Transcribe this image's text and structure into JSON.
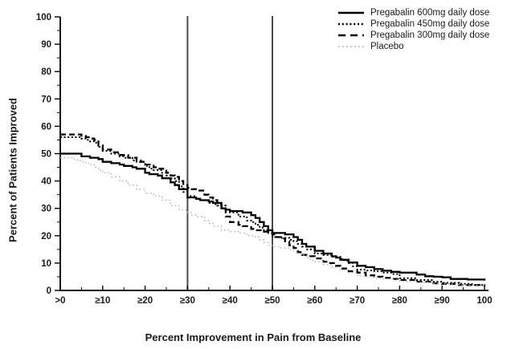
{
  "figure": {
    "x_axis_title": "Percent Improvement in Pain from Baseline",
    "y_axis_title": "Percent of Patients Improved"
  },
  "chart_data": {
    "type": "line",
    "subtype": "step",
    "title": "",
    "xlabel": "Percent Improvement in Pain from Baseline",
    "ylabel": "Percent of Patients Improved",
    "xlim": [
      0,
      100
    ],
    "ylim": [
      0,
      100
    ],
    "grid": false,
    "legend_position": "top-right",
    "x_tick_values": [
      0,
      10,
      20,
      30,
      40,
      50,
      60,
      70,
      80,
      90,
      100
    ],
    "x_tick_labels": [
      ">0",
      "≥10",
      "≥20",
      "≥30",
      "≥40",
      "≥50",
      "≥60",
      "≥70",
      "≥80",
      "≥90",
      "100"
    ],
    "y_tick_values": [
      0,
      10,
      20,
      30,
      40,
      50,
      60,
      70,
      80,
      90,
      100
    ],
    "y_tick_labels": [
      "0",
      "10",
      "20",
      "30",
      "40",
      "50",
      "60",
      "70",
      "80",
      "90",
      "100"
    ],
    "reference_lines_x": [
      30,
      50
    ],
    "reference_line_color": "#4a4a4a",
    "axis_color": "#000000",
    "series": [
      {
        "name": "Pregabalin 600mg daily dose",
        "style": "solid",
        "color": "#000000",
        "points": [
          [
            0,
            50
          ],
          [
            4,
            50
          ],
          [
            5,
            49
          ],
          [
            7,
            48.5
          ],
          [
            9,
            48
          ],
          [
            10,
            47
          ],
          [
            12,
            46.5
          ],
          [
            14,
            46
          ],
          [
            15,
            45.5
          ],
          [
            17,
            45
          ],
          [
            18,
            44.5
          ],
          [
            20,
            43
          ],
          [
            21,
            42.5
          ],
          [
            23,
            42
          ],
          [
            24,
            41
          ],
          [
            26,
            39.5
          ],
          [
            27,
            38.5
          ],
          [
            28,
            37
          ],
          [
            30,
            34
          ],
          [
            32,
            33.5
          ],
          [
            33,
            33
          ],
          [
            35,
            32.5
          ],
          [
            36,
            32
          ],
          [
            38,
            30
          ],
          [
            39,
            29.5
          ],
          [
            40,
            29
          ],
          [
            43,
            28.5
          ],
          [
            45,
            27.5
          ],
          [
            46,
            26.5
          ],
          [
            47,
            25
          ],
          [
            48,
            23.5
          ],
          [
            49,
            22
          ],
          [
            50,
            21
          ],
          [
            53,
            20.5
          ],
          [
            55,
            19.5
          ],
          [
            56,
            18.5
          ],
          [
            57,
            17
          ],
          [
            58,
            16
          ],
          [
            60,
            14.5
          ],
          [
            62,
            13.5
          ],
          [
            64,
            12.5
          ],
          [
            65,
            12
          ],
          [
            66,
            11.2
          ],
          [
            68,
            10.2
          ],
          [
            70,
            9
          ],
          [
            72,
            8.5
          ],
          [
            74,
            7.8
          ],
          [
            76,
            7.2
          ],
          [
            78,
            6.8
          ],
          [
            80,
            6.5
          ],
          [
            84,
            5.8
          ],
          [
            86,
            5.2
          ],
          [
            88,
            5
          ],
          [
            90,
            4.8
          ],
          [
            92,
            4.2
          ],
          [
            96,
            4
          ],
          [
            100,
            3.6
          ]
        ]
      },
      {
        "name": "Pregabalin 450mg daily dose",
        "style": "dense-dotted",
        "color": "#000000",
        "points": [
          [
            0,
            56
          ],
          [
            3,
            56
          ],
          [
            5,
            55.5
          ],
          [
            6,
            55
          ],
          [
            7,
            54.5
          ],
          [
            8,
            54
          ],
          [
            9,
            52.5
          ],
          [
            10,
            51
          ],
          [
            12,
            50
          ],
          [
            14,
            49
          ],
          [
            15,
            48.5
          ],
          [
            17,
            47.5
          ],
          [
            18,
            47
          ],
          [
            20,
            45.5
          ],
          [
            21,
            44.5
          ],
          [
            22,
            44
          ],
          [
            24,
            43
          ],
          [
            25,
            42
          ],
          [
            26,
            41
          ],
          [
            27,
            40
          ],
          [
            28,
            38
          ],
          [
            29,
            36
          ],
          [
            30,
            34.5
          ],
          [
            32,
            33.5
          ],
          [
            33,
            33
          ],
          [
            35,
            32
          ],
          [
            36,
            31.5
          ],
          [
            37,
            31
          ],
          [
            39,
            29.5
          ],
          [
            40,
            28.5
          ],
          [
            42,
            27
          ],
          [
            44,
            25.5
          ],
          [
            45,
            25
          ],
          [
            46,
            24
          ],
          [
            47,
            23
          ],
          [
            48,
            22
          ],
          [
            49,
            21
          ],
          [
            50,
            19.5
          ],
          [
            52,
            19.2
          ],
          [
            54,
            18.5
          ],
          [
            55,
            18
          ],
          [
            56,
            17
          ],
          [
            57,
            16
          ],
          [
            58,
            15
          ],
          [
            60,
            13.5
          ],
          [
            62,
            13
          ],
          [
            64,
            12.3
          ],
          [
            66,
            11.5
          ],
          [
            67,
            10.8
          ],
          [
            68,
            10
          ],
          [
            69,
            8.8
          ],
          [
            70,
            7.6
          ],
          [
            72,
            7.3
          ],
          [
            74,
            7
          ],
          [
            76,
            6.5
          ],
          [
            78,
            6
          ],
          [
            80,
            4.5
          ],
          [
            84,
            3.8
          ],
          [
            88,
            3.2
          ],
          [
            90,
            2.8
          ],
          [
            94,
            2.4
          ],
          [
            97,
            2
          ],
          [
            100,
            1.5
          ]
        ]
      },
      {
        "name": "Pregabalin 300mg daily dose",
        "style": "dashed",
        "color": "#000000",
        "points": [
          [
            0,
            57
          ],
          [
            4,
            57
          ],
          [
            5,
            56.5
          ],
          [
            6,
            56
          ],
          [
            7,
            55.5
          ],
          [
            8,
            55
          ],
          [
            9,
            53
          ],
          [
            10,
            51.5
          ],
          [
            12,
            50.5
          ],
          [
            14,
            49.5
          ],
          [
            16,
            48.5
          ],
          [
            18,
            47.5
          ],
          [
            19,
            47
          ],
          [
            20,
            46
          ],
          [
            22,
            45
          ],
          [
            23,
            44.5
          ],
          [
            25,
            43
          ],
          [
            26,
            42
          ],
          [
            27,
            41.5
          ],
          [
            28,
            40
          ],
          [
            29,
            38.5
          ],
          [
            30,
            37.5
          ],
          [
            31,
            37
          ],
          [
            32,
            36.5
          ],
          [
            34,
            35
          ],
          [
            35,
            34
          ],
          [
            36,
            33
          ],
          [
            37,
            31.5
          ],
          [
            38,
            30
          ],
          [
            39,
            27
          ],
          [
            40,
            25
          ],
          [
            42,
            24
          ],
          [
            43,
            23.5
          ],
          [
            45,
            22.5
          ],
          [
            46,
            22
          ],
          [
            48,
            21.5
          ],
          [
            50,
            20.5
          ],
          [
            51,
            19.5
          ],
          [
            52,
            19
          ],
          [
            53,
            18
          ],
          [
            54,
            16.5
          ],
          [
            55,
            15.5
          ],
          [
            56,
            14
          ],
          [
            57,
            13
          ],
          [
            58,
            12.5
          ],
          [
            60,
            11.7
          ],
          [
            62,
            10.5
          ],
          [
            63,
            10
          ],
          [
            65,
            9
          ],
          [
            66,
            8
          ],
          [
            68,
            7
          ],
          [
            70,
            6.5
          ],
          [
            72,
            5.5
          ],
          [
            74,
            5
          ],
          [
            76,
            4.6
          ],
          [
            78,
            4.2
          ],
          [
            80,
            3.8
          ],
          [
            84,
            3.2
          ],
          [
            88,
            2.6
          ],
          [
            90,
            2.4
          ],
          [
            94,
            2
          ],
          [
            100,
            1.5
          ]
        ]
      },
      {
        "name": "Placebo",
        "style": "dotted",
        "color": "#b0b0b0",
        "points": [
          [
            0,
            48.5
          ],
          [
            3,
            48
          ],
          [
            4,
            47.5
          ],
          [
            5,
            47
          ],
          [
            6,
            46.5
          ],
          [
            7,
            46
          ],
          [
            8,
            45
          ],
          [
            9,
            44
          ],
          [
            10,
            43
          ],
          [
            12,
            41.5
          ],
          [
            14,
            40
          ],
          [
            16,
            38.5
          ],
          [
            18,
            37
          ],
          [
            20,
            35.5
          ],
          [
            22,
            34.5
          ],
          [
            24,
            33
          ],
          [
            26,
            31
          ],
          [
            28,
            29.5
          ],
          [
            30,
            28.5
          ],
          [
            31,
            27.5
          ],
          [
            32,
            27
          ],
          [
            34,
            25.5
          ],
          [
            35,
            24.5
          ],
          [
            36,
            23.5
          ],
          [
            38,
            22
          ],
          [
            40,
            21.5
          ],
          [
            42,
            21
          ],
          [
            44,
            20
          ],
          [
            46,
            19.5
          ],
          [
            47,
            18.5
          ],
          [
            48,
            17.5
          ],
          [
            49,
            16.5
          ],
          [
            50,
            16
          ],
          [
            52,
            15.5
          ],
          [
            54,
            15
          ],
          [
            55,
            14.5
          ],
          [
            56,
            13.5
          ],
          [
            57,
            13
          ],
          [
            58,
            12
          ],
          [
            59,
            11
          ],
          [
            60,
            10.5
          ],
          [
            62,
            9.5
          ],
          [
            64,
            8.5
          ],
          [
            66,
            7.5
          ],
          [
            68,
            6.5
          ],
          [
            70,
            5.3
          ],
          [
            72,
            5
          ],
          [
            74,
            4.5
          ],
          [
            76,
            4.2
          ],
          [
            78,
            4
          ],
          [
            80,
            3.4
          ],
          [
            84,
            3
          ],
          [
            88,
            2.6
          ],
          [
            90,
            2.4
          ],
          [
            94,
            2
          ],
          [
            100,
            1.2
          ]
        ]
      }
    ]
  }
}
